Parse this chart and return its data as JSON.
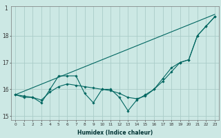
{
  "title": "",
  "xlabel": "Humidex (Indice chaleur)",
  "background_color": "#cce8e4",
  "grid_color": "#aaccc8",
  "line_color": "#006660",
  "x_values": [
    0,
    1,
    2,
    3,
    4,
    5,
    6,
    7,
    8,
    9,
    10,
    11,
    12,
    13,
    14,
    15,
    16,
    17,
    18,
    19,
    20,
    21,
    22,
    23
  ],
  "series_jagged": [
    15.8,
    15.7,
    15.7,
    15.5,
    16.0,
    16.5,
    16.5,
    16.5,
    15.85,
    15.5,
    16.0,
    16.0,
    15.7,
    15.2,
    15.6,
    15.8,
    16.0,
    16.3,
    16.65,
    17.0,
    17.1,
    18.0,
    18.35,
    18.7
  ],
  "series_smooth": [
    15.8,
    15.75,
    15.7,
    15.6,
    15.9,
    16.1,
    16.2,
    16.15,
    16.1,
    16.05,
    16.0,
    15.95,
    15.85,
    15.7,
    15.65,
    15.75,
    16.0,
    16.4,
    16.8,
    17.0,
    17.1,
    18.0,
    18.35,
    18.7
  ],
  "series_linear": [
    15.8,
    15.93,
    16.06,
    16.19,
    16.32,
    16.45,
    16.58,
    16.71,
    16.84,
    16.97,
    17.1,
    17.23,
    17.36,
    17.49,
    17.62,
    17.75,
    17.88,
    18.01,
    18.14,
    18.27,
    18.4,
    18.53,
    18.66,
    18.79
  ],
  "ylim": [
    14.85,
    19.1
  ],
  "yticks": [
    15,
    16,
    17,
    18
  ],
  "ytop_label": "1",
  "xlim": [
    -0.5,
    23.5
  ]
}
